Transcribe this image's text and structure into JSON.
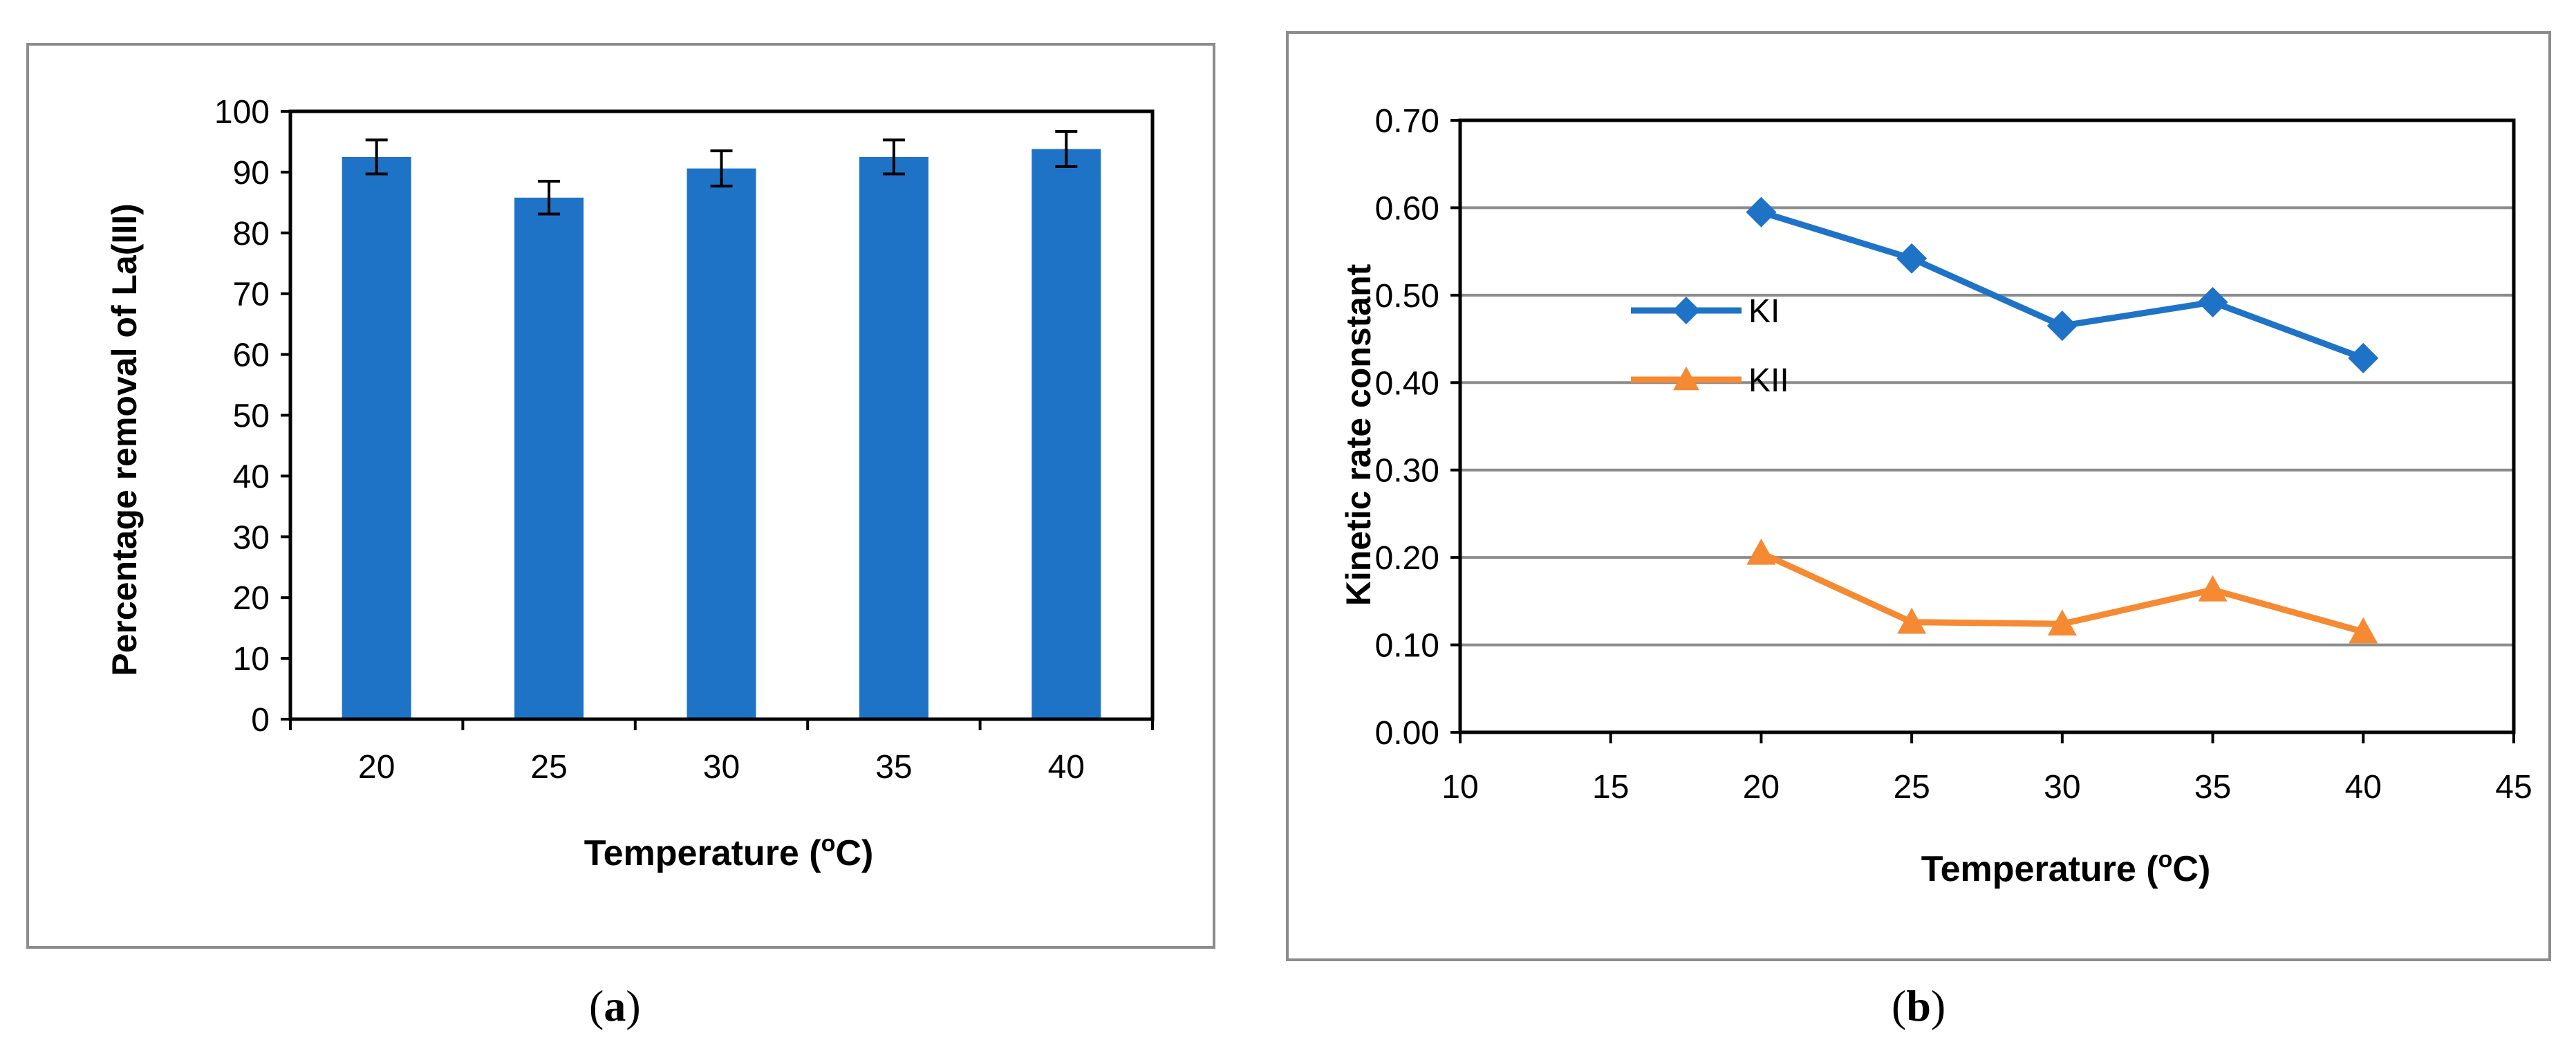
{
  "captions": [
    "a",
    "b"
  ],
  "colors": {
    "bar": "#1f73c7",
    "ki": "#1f73c7",
    "kii": "#f58a33",
    "grid": "#8c8c8c"
  },
  "chart_data": [
    {
      "type": "bar",
      "categories": [
        "20",
        "25",
        "30",
        "35",
        "40"
      ],
      "values": [
        92.5,
        85.8,
        90.6,
        92.5,
        93.8
      ],
      "error": [
        2.8,
        2.7,
        2.9,
        2.8,
        2.9
      ],
      "xlabel": "Temperature (oC)",
      "ylabel": "Percentage removal of La(III)",
      "ylim": [
        0,
        100
      ],
      "yticks": [
        "0",
        "10",
        "20",
        "30",
        "40",
        "50",
        "60",
        "70",
        "80",
        "90",
        "100"
      ],
      "grid": false
    },
    {
      "type": "line",
      "x": [
        20,
        25,
        30,
        35,
        40
      ],
      "series": [
        {
          "name": "KI",
          "values": [
            0.595,
            0.542,
            0.465,
            0.492,
            0.428
          ]
        },
        {
          "name": "KII",
          "values": [
            0.205,
            0.126,
            0.124,
            0.163,
            0.115
          ]
        }
      ],
      "xlabel": "Temperature (oC)",
      "ylabel": "Kinetic rate constant",
      "xlim": [
        10,
        45
      ],
      "ylim": [
        0,
        0.7
      ],
      "xticks": [
        "10",
        "15",
        "20",
        "25",
        "30",
        "35",
        "40",
        "45"
      ],
      "yticks": [
        "0.00",
        "0.10",
        "0.20",
        "0.30",
        "0.40",
        "0.50",
        "0.60",
        "0.70"
      ],
      "grid": true,
      "legend": "left"
    }
  ]
}
